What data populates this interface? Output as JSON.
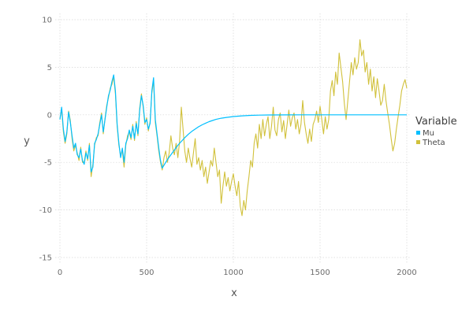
{
  "chart_data": {
    "type": "line",
    "xlabel": "x",
    "ylabel": "y",
    "xlim": [
      0,
      2000
    ],
    "ylim": [
      -15,
      10
    ],
    "x_ticks": [
      0,
      500,
      1000,
      1500,
      2000
    ],
    "y_ticks": [
      -15,
      -10,
      -5,
      0,
      5,
      10
    ],
    "grid": true,
    "legend": {
      "title": "Variable",
      "placement": "right"
    },
    "series": [
      {
        "name": "Mu",
        "color": "#00bfff",
        "points": [
          [
            0,
            -0.5
          ],
          [
            10,
            0.8
          ],
          [
            20,
            -1.5
          ],
          [
            30,
            -2.8
          ],
          [
            40,
            -1.8
          ],
          [
            50,
            0.3
          ],
          [
            60,
            -0.8
          ],
          [
            70,
            -2.2
          ],
          [
            80,
            -3.5
          ],
          [
            90,
            -3.0
          ],
          [
            100,
            -4.2
          ],
          [
            110,
            -4.5
          ],
          [
            120,
            -3.6
          ],
          [
            130,
            -4.8
          ],
          [
            140,
            -5.2
          ],
          [
            150,
            -4.0
          ],
          [
            160,
            -4.6
          ],
          [
            170,
            -3.2
          ],
          [
            180,
            -6.0
          ],
          [
            190,
            -5.5
          ],
          [
            200,
            -3.0
          ],
          [
            210,
            -2.6
          ],
          [
            220,
            -2.0
          ],
          [
            230,
            -1.0
          ],
          [
            240,
            0.0
          ],
          [
            250,
            -1.8
          ],
          [
            260,
            -0.5
          ],
          [
            270,
            0.8
          ],
          [
            280,
            2.0
          ],
          [
            290,
            2.6
          ],
          [
            300,
            3.5
          ],
          [
            310,
            4.2
          ],
          [
            320,
            2.5
          ],
          [
            330,
            -1.0
          ],
          [
            340,
            -3.0
          ],
          [
            350,
            -4.5
          ],
          [
            360,
            -3.5
          ],
          [
            370,
            -5.0
          ],
          [
            380,
            -3.0
          ],
          [
            390,
            -2.5
          ],
          [
            400,
            -1.6
          ],
          [
            410,
            -2.4
          ],
          [
            420,
            -1.2
          ],
          [
            430,
            -2.5
          ],
          [
            440,
            -0.9
          ],
          [
            450,
            -2.0
          ],
          [
            460,
            0.5
          ],
          [
            470,
            2.0
          ],
          [
            480,
            1.0
          ],
          [
            490,
            -0.8
          ],
          [
            500,
            -0.5
          ],
          [
            510,
            -1.5
          ],
          [
            520,
            -0.9
          ],
          [
            530,
            2.5
          ],
          [
            540,
            3.9
          ],
          [
            550,
            -0.5
          ],
          [
            560,
            -2.0
          ],
          [
            570,
            -3.5
          ],
          [
            580,
            -4.8
          ],
          [
            590,
            -5.6
          ],
          [
            600,
            -5.3
          ],
          [
            620,
            -4.7
          ],
          [
            640,
            -4.2
          ],
          [
            660,
            -3.7
          ],
          [
            680,
            -3.2
          ],
          [
            700,
            -2.8
          ],
          [
            720,
            -2.4
          ],
          [
            740,
            -2.05
          ],
          [
            760,
            -1.75
          ],
          [
            780,
            -1.5
          ],
          [
            800,
            -1.25
          ],
          [
            820,
            -1.05
          ],
          [
            840,
            -0.88
          ],
          [
            860,
            -0.72
          ],
          [
            880,
            -0.6
          ],
          [
            900,
            -0.48
          ],
          [
            930,
            -0.36
          ],
          [
            960,
            -0.27
          ],
          [
            1000,
            -0.18
          ],
          [
            1050,
            -0.11
          ],
          [
            1100,
            -0.06
          ],
          [
            1150,
            -0.03
          ],
          [
            1200,
            -0.02
          ],
          [
            1300,
            -0.01
          ],
          [
            1400,
            0.0
          ],
          [
            1500,
            0.0
          ],
          [
            1700,
            0.0
          ],
          [
            2000,
            0.0
          ]
        ]
      },
      {
        "name": "Theta",
        "color": "#d1c13b",
        "points": [
          [
            0,
            -0.4
          ],
          [
            10,
            0.6
          ],
          [
            20,
            -1.8
          ],
          [
            30,
            -3.0
          ],
          [
            40,
            -2.0
          ],
          [
            50,
            0.4
          ],
          [
            60,
            -0.6
          ],
          [
            70,
            -2.5
          ],
          [
            80,
            -3.8
          ],
          [
            90,
            -3.2
          ],
          [
            100,
            -4.0
          ],
          [
            110,
            -4.8
          ],
          [
            120,
            -3.4
          ],
          [
            130,
            -5.0
          ],
          [
            140,
            -5.0
          ],
          [
            150,
            -3.8
          ],
          [
            160,
            -4.8
          ],
          [
            170,
            -3.0
          ],
          [
            180,
            -6.5
          ],
          [
            190,
            -5.2
          ],
          [
            200,
            -3.2
          ],
          [
            210,
            -2.4
          ],
          [
            220,
            -2.2
          ],
          [
            230,
            -0.8
          ],
          [
            240,
            0.2
          ],
          [
            250,
            -2.0
          ],
          [
            260,
            -0.4
          ],
          [
            270,
            1.0
          ],
          [
            280,
            1.8
          ],
          [
            290,
            2.8
          ],
          [
            300,
            3.2
          ],
          [
            310,
            4.0
          ],
          [
            320,
            2.2
          ],
          [
            330,
            -1.2
          ],
          [
            340,
            -3.2
          ],
          [
            350,
            -4.2
          ],
          [
            360,
            -3.8
          ],
          [
            370,
            -5.5
          ],
          [
            380,
            -3.2
          ],
          [
            390,
            -2.2
          ],
          [
            400,
            -1.8
          ],
          [
            410,
            -2.6
          ],
          [
            420,
            -1.0
          ],
          [
            430,
            -2.7
          ],
          [
            440,
            -0.7
          ],
          [
            450,
            -2.2
          ],
          [
            460,
            0.7
          ],
          [
            470,
            2.2
          ],
          [
            480,
            0.8
          ],
          [
            490,
            -1.0
          ],
          [
            500,
            -0.3
          ],
          [
            510,
            -1.7
          ],
          [
            520,
            -0.7
          ],
          [
            530,
            2.3
          ],
          [
            540,
            3.6
          ],
          [
            550,
            -0.8
          ],
          [
            560,
            -2.2
          ],
          [
            570,
            -3.8
          ],
          [
            580,
            -5.0
          ],
          [
            590,
            -5.8
          ],
          [
            600,
            -4.5
          ],
          [
            610,
            -3.8
          ],
          [
            620,
            -5.0
          ],
          [
            630,
            -4.0
          ],
          [
            640,
            -2.2
          ],
          [
            650,
            -3.5
          ],
          [
            660,
            -4.2
          ],
          [
            670,
            -3.0
          ],
          [
            680,
            -4.5
          ],
          [
            690,
            -2.8
          ],
          [
            700,
            0.8
          ],
          [
            710,
            -1.5
          ],
          [
            720,
            -3.8
          ],
          [
            730,
            -5.0
          ],
          [
            740,
            -3.5
          ],
          [
            750,
            -4.6
          ],
          [
            760,
            -5.5
          ],
          [
            770,
            -4.0
          ],
          [
            780,
            -2.5
          ],
          [
            790,
            -5.2
          ],
          [
            800,
            -4.5
          ],
          [
            810,
            -5.8
          ],
          [
            820,
            -4.8
          ],
          [
            830,
            -6.5
          ],
          [
            840,
            -5.5
          ],
          [
            850,
            -7.2
          ],
          [
            860,
            -6.0
          ],
          [
            870,
            -4.8
          ],
          [
            880,
            -5.4
          ],
          [
            890,
            -3.5
          ],
          [
            900,
            -5.0
          ],
          [
            910,
            -6.5
          ],
          [
            920,
            -5.8
          ],
          [
            930,
            -9.3
          ],
          [
            940,
            -7.5
          ],
          [
            950,
            -6.0
          ],
          [
            960,
            -7.5
          ],
          [
            970,
            -6.6
          ],
          [
            980,
            -8.0
          ],
          [
            990,
            -7.0
          ],
          [
            1000,
            -6.2
          ],
          [
            1010,
            -7.5
          ],
          [
            1020,
            -8.5
          ],
          [
            1030,
            -7.0
          ],
          [
            1040,
            -9.6
          ],
          [
            1050,
            -10.6
          ],
          [
            1060,
            -9.0
          ],
          [
            1070,
            -10.0
          ],
          [
            1080,
            -8.0
          ],
          [
            1090,
            -6.5
          ],
          [
            1100,
            -4.8
          ],
          [
            1110,
            -5.5
          ],
          [
            1120,
            -3.0
          ],
          [
            1130,
            -2.0
          ],
          [
            1140,
            -3.5
          ],
          [
            1150,
            -1.0
          ],
          [
            1160,
            -2.5
          ],
          [
            1170,
            -0.5
          ],
          [
            1180,
            -2.2
          ],
          [
            1190,
            -1.0
          ],
          [
            1200,
            -0.2
          ],
          [
            1210,
            -2.5
          ],
          [
            1220,
            -1.2
          ],
          [
            1230,
            0.8
          ],
          [
            1240,
            -1.6
          ],
          [
            1250,
            -2.2
          ],
          [
            1260,
            -0.5
          ],
          [
            1270,
            0.2
          ],
          [
            1280,
            -1.8
          ],
          [
            1290,
            -0.6
          ],
          [
            1300,
            -2.5
          ],
          [
            1310,
            -1.0
          ],
          [
            1320,
            0.5
          ],
          [
            1330,
            -1.2
          ],
          [
            1340,
            -0.3
          ],
          [
            1350,
            0.2
          ],
          [
            1360,
            -1.5
          ],
          [
            1370,
            -0.5
          ],
          [
            1380,
            -2.0
          ],
          [
            1390,
            -1.0
          ],
          [
            1400,
            1.5
          ],
          [
            1410,
            -0.8
          ],
          [
            1420,
            -2.0
          ],
          [
            1430,
            -3.0
          ],
          [
            1440,
            -1.5
          ],
          [
            1450,
            -2.8
          ],
          [
            1460,
            -1.0
          ],
          [
            1470,
            -0.5
          ],
          [
            1480,
            0.4
          ],
          [
            1490,
            -0.8
          ],
          [
            1500,
            0.9
          ],
          [
            1510,
            -0.5
          ],
          [
            1520,
            -2.0
          ],
          [
            1530,
            -0.2
          ],
          [
            1540,
            -1.5
          ],
          [
            1550,
            -0.5
          ],
          [
            1560,
            2.5
          ],
          [
            1570,
            3.6
          ],
          [
            1580,
            2.0
          ],
          [
            1590,
            4.5
          ],
          [
            1600,
            3.2
          ],
          [
            1610,
            6.5
          ],
          [
            1620,
            5.0
          ],
          [
            1630,
            3.5
          ],
          [
            1640,
            1.2
          ],
          [
            1650,
            -0.5
          ],
          [
            1660,
            1.5
          ],
          [
            1670,
            3.5
          ],
          [
            1680,
            5.5
          ],
          [
            1690,
            4.2
          ],
          [
            1700,
            6.0
          ],
          [
            1710,
            4.8
          ],
          [
            1720,
            5.5
          ],
          [
            1730,
            7.9
          ],
          [
            1740,
            6.2
          ],
          [
            1750,
            6.8
          ],
          [
            1760,
            4.5
          ],
          [
            1770,
            5.5
          ],
          [
            1780,
            3.2
          ],
          [
            1790,
            4.8
          ],
          [
            1800,
            2.5
          ],
          [
            1810,
            4.0
          ],
          [
            1820,
            1.8
          ],
          [
            1830,
            3.8
          ],
          [
            1840,
            2.5
          ],
          [
            1850,
            1.0
          ],
          [
            1860,
            1.5
          ],
          [
            1870,
            3.2
          ],
          [
            1880,
            1.5
          ],
          [
            1890,
            0.2
          ],
          [
            1900,
            -1.0
          ],
          [
            1910,
            -2.5
          ],
          [
            1920,
            -3.8
          ],
          [
            1930,
            -3.0
          ],
          [
            1940,
            -1.5
          ],
          [
            1950,
            -0.2
          ],
          [
            1960,
            1.0
          ],
          [
            1970,
            2.5
          ],
          [
            1980,
            3.2
          ],
          [
            1990,
            3.7
          ],
          [
            2000,
            2.8
          ]
        ]
      }
    ]
  }
}
